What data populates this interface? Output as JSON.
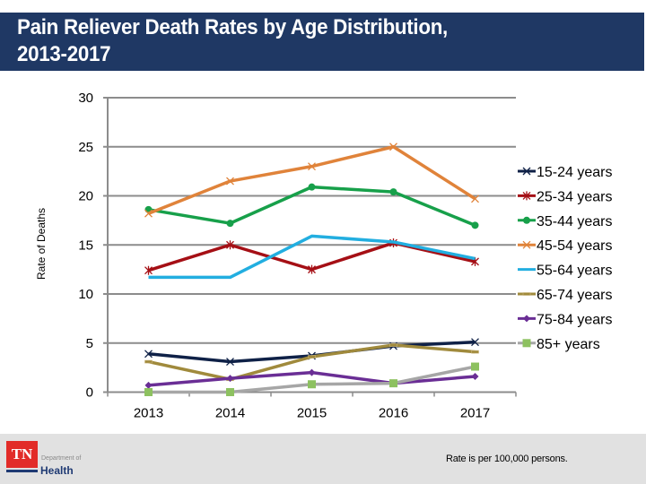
{
  "title": "Pain Reliever Death Rates by Age Distribution,\n2013-2017",
  "chart_data": {
    "type": "line",
    "title": "Pain Reliever Death Rates by Age Distribution, 2013-2017",
    "xlabel": "",
    "ylabel": "Rate of Deaths",
    "categories": [
      "2013",
      "2014",
      "2015",
      "2016",
      "2017"
    ],
    "ylim": [
      0,
      30
    ],
    "yticks": [
      "0",
      "5",
      "10",
      "15",
      "20",
      "25",
      "30"
    ],
    "grid": true,
    "legend_position": "right",
    "series": [
      {
        "name": "15-24 years",
        "color": "#0f2147",
        "marker": "x",
        "values": [
          3.9,
          3.1,
          3.7,
          4.7,
          5.1
        ]
      },
      {
        "name": "25-34 years",
        "color": "#a50f15",
        "marker": "star",
        "values": [
          12.4,
          15.0,
          12.5,
          15.2,
          13.3
        ]
      },
      {
        "name": "35-44 years",
        "color": "#17a04a",
        "marker": "circle",
        "values": [
          18.6,
          17.2,
          20.9,
          20.4,
          17.0
        ]
      },
      {
        "name": "45-54 years",
        "color": "#e0833a",
        "marker": "x",
        "values": [
          18.2,
          21.5,
          23.0,
          25.0,
          19.7
        ]
      },
      {
        "name": "55-64 years",
        "color": "#22aee0",
        "marker": "none",
        "values": [
          11.7,
          11.7,
          15.9,
          15.3,
          13.6
        ]
      },
      {
        "name": "65-74 years",
        "color": "#a08a3c",
        "marker": "dash",
        "values": [
          3.1,
          1.3,
          3.6,
          4.8,
          4.1
        ]
      },
      {
        "name": "75-84 years",
        "color": "#6a2e95",
        "marker": "diamond",
        "values": [
          0.7,
          1.4,
          2.0,
          0.9,
          1.6
        ]
      },
      {
        "name": "85+ years",
        "color": "#a6a6a6",
        "marker": "square",
        "marker_color": "#8dc160",
        "values": [
          0.0,
          0.0,
          0.8,
          0.9,
          2.6
        ]
      }
    ]
  },
  "footer": {
    "logo_abbrev": "TN",
    "logo_department": "Department of",
    "logo_health": "Health",
    "footnote": "Rate is per 100,000 persons."
  }
}
